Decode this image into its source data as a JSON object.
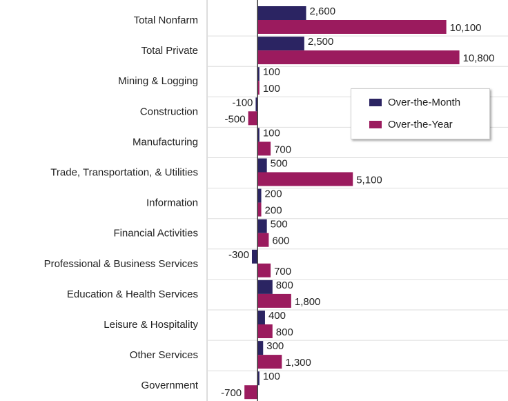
{
  "chart_data": {
    "type": "bar",
    "orientation": "horizontal",
    "categories": [
      "Total Nonfarm",
      "Total Private",
      "Mining & Logging",
      "Construction",
      "Manufacturing",
      "Trade, Transportation, & Utilities",
      "Information",
      "Financial Activities",
      "Professional & Business Services",
      "Education & Health Services",
      "Leisure & Hospitality",
      "Other Services",
      "Government"
    ],
    "series": [
      {
        "name": "Over-the-Month",
        "color": "#2b2462",
        "values": [
          2600,
          2500,
          100,
          -100,
          100,
          500,
          200,
          500,
          -300,
          800,
          400,
          300,
          100
        ],
        "value_labels": [
          "2,600",
          "2,500",
          "100",
          "-100",
          "100",
          "500",
          "200",
          "500",
          "-300",
          "800",
          "400",
          "300",
          "100"
        ]
      },
      {
        "name": "Over-the-Year",
        "color": "#9b1b5e",
        "values": [
          10100,
          10800,
          100,
          -500,
          700,
          5100,
          200,
          600,
          700,
          1800,
          800,
          1300,
          -700
        ],
        "value_labels": [
          "10,100",
          "10,800",
          "100",
          "-500",
          "700",
          "5,100",
          "200",
          "600",
          "700",
          "1,800",
          "800",
          "1,300",
          "-700"
        ]
      }
    ],
    "xlim": [
      -2700,
      13400
    ],
    "legend": "right"
  }
}
